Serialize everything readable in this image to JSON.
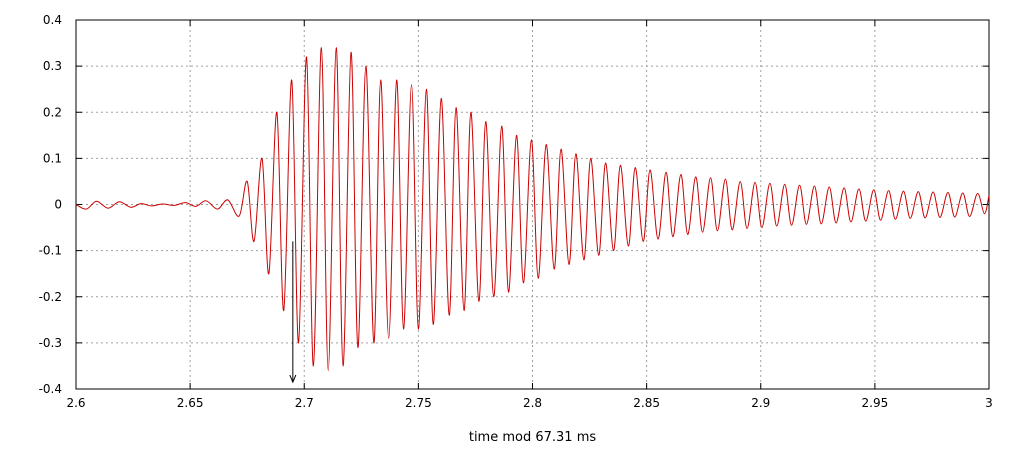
{
  "chart_data": {
    "type": "line",
    "title": "",
    "xlabel": "time mod 67.31 ms",
    "ylabel": "",
    "xlim": [
      2.6,
      3.0
    ],
    "ylim": [
      -0.4,
      0.4
    ],
    "grid": true,
    "x_ticks": [
      2.6,
      2.65,
      2.7,
      2.75,
      2.8,
      2.85,
      2.9,
      2.95,
      3.0
    ],
    "x_tick_labels": [
      "2.6",
      "2.65",
      "2.7",
      "2.75",
      "2.8",
      "2.85",
      "2.9",
      "2.95",
      "3"
    ],
    "y_ticks": [
      -0.4,
      -0.3,
      -0.2,
      -0.1,
      0,
      0.1,
      0.2,
      0.3,
      0.4
    ],
    "y_tick_labels": [
      "-0.4",
      "-0.3",
      "-0.2",
      "-0.1",
      "0",
      "0.1",
      "0.2",
      "0.3",
      "0.4"
    ],
    "series": [
      {
        "color": "#cc0000",
        "x": [
          2.6,
          2.6045,
          2.609,
          2.614,
          2.619,
          2.624,
          2.6285,
          2.633,
          2.638,
          2.643,
          2.648,
          2.6525,
          2.657,
          2.662,
          2.6665,
          2.6715,
          2.675,
          2.678,
          2.6815,
          2.6845,
          2.688,
          2.691,
          2.6945,
          2.6975,
          2.701,
          2.704,
          2.7075,
          2.7105,
          2.714,
          2.717,
          2.7205,
          2.7235,
          2.727,
          2.7305,
          2.7335,
          2.737,
          2.7405,
          2.7435,
          2.747,
          2.75,
          2.7535,
          2.7565,
          2.76,
          2.7635,
          2.7665,
          2.77,
          2.773,
          2.7765,
          2.7795,
          2.783,
          2.7865,
          2.7895,
          2.793,
          2.796,
          2.7995,
          2.8025,
          2.806,
          2.8095,
          2.8125,
          2.816,
          2.819,
          2.8225,
          2.8255,
          2.829,
          2.832,
          2.8355,
          2.8385,
          2.842,
          2.845,
          2.8485,
          2.8515,
          2.855,
          2.8585,
          2.8615,
          2.865,
          2.868,
          2.8715,
          2.8745,
          2.878,
          2.881,
          2.8845,
          2.8875,
          2.891,
          2.894,
          2.8975,
          2.9005,
          2.904,
          2.907,
          2.9105,
          2.9135,
          2.917,
          2.92,
          2.9235,
          2.9265,
          2.93,
          2.933,
          2.9365,
          2.9395,
          2.943,
          2.946,
          2.9495,
          2.9525,
          2.956,
          2.959,
          2.9625,
          2.9655,
          2.969,
          2.972,
          2.9755,
          2.9785,
          2.982,
          2.985,
          2.9885,
          2.9915,
          2.995,
          2.998,
          3.0
        ],
        "y": [
          0.0,
          -0.01,
          0.007,
          -0.008,
          0.006,
          -0.006,
          0.002,
          -0.003,
          0.001,
          -0.002,
          0.004,
          -0.004,
          0.008,
          -0.01,
          0.01,
          -0.025,
          0.05,
          -0.08,
          0.1,
          -0.15,
          0.2,
          -0.23,
          0.27,
          -0.3,
          0.32,
          -0.35,
          0.34,
          -0.36,
          0.34,
          -0.35,
          0.33,
          -0.31,
          0.3,
          -0.3,
          0.27,
          -0.29,
          0.27,
          -0.27,
          0.26,
          -0.27,
          0.25,
          -0.26,
          0.23,
          -0.24,
          0.21,
          -0.23,
          0.2,
          -0.21,
          0.18,
          -0.2,
          0.17,
          -0.19,
          0.15,
          -0.17,
          0.14,
          -0.16,
          0.13,
          -0.14,
          0.12,
          -0.13,
          0.11,
          -0.12,
          0.1,
          -0.11,
          0.09,
          -0.1,
          0.085,
          -0.09,
          0.08,
          -0.08,
          0.075,
          -0.075,
          0.07,
          -0.07,
          0.065,
          -0.065,
          0.06,
          -0.06,
          0.058,
          -0.057,
          0.055,
          -0.055,
          0.05,
          -0.052,
          0.048,
          -0.05,
          0.046,
          -0.047,
          0.044,
          -0.045,
          0.042,
          -0.043,
          0.04,
          -0.042,
          0.038,
          -0.04,
          0.036,
          -0.038,
          0.034,
          -0.036,
          0.032,
          -0.034,
          0.03,
          -0.032,
          0.029,
          -0.03,
          0.028,
          -0.029,
          0.027,
          -0.028,
          0.026,
          -0.027,
          0.025,
          -0.026,
          0.024,
          -0.02,
          0.02
        ]
      }
    ],
    "annotation": {
      "type": "arrow",
      "x": 2.695,
      "y_start": -0.08,
      "y_end": -0.385,
      "color": "#000000"
    }
  }
}
